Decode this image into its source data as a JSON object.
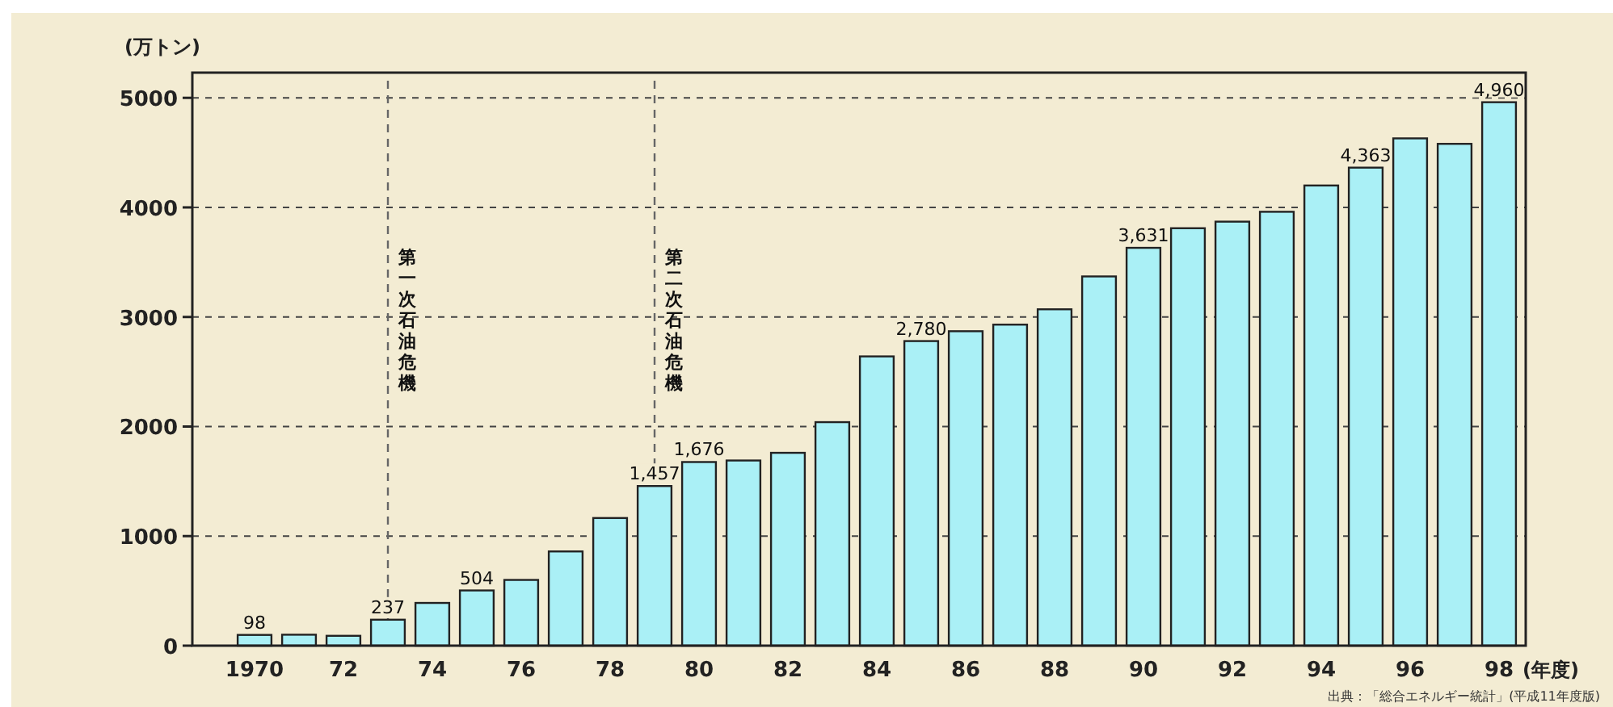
{
  "chart_data": {
    "type": "bar",
    "ylabel": "(万トン)",
    "xlabel": "(年度)",
    "x": [
      1970,
      1971,
      1972,
      1973,
      1974,
      1975,
      1976,
      1977,
      1978,
      1979,
      1980,
      1981,
      1982,
      1983,
      1984,
      1985,
      1986,
      1987,
      1988,
      1989,
      1990,
      1991,
      1992,
      1993,
      1994,
      1995,
      1996,
      1997,
      1998
    ],
    "values": [
      98,
      100,
      90,
      237,
      390,
      504,
      600,
      860,
      1165,
      1457,
      1676,
      1690,
      1760,
      2040,
      2640,
      2780,
      2870,
      2930,
      3070,
      3370,
      3631,
      3810,
      3870,
      3960,
      4200,
      4363,
      4630,
      4580,
      4960
    ],
    "value_labels": [
      "98",
      null,
      null,
      "237",
      null,
      "504",
      null,
      null,
      null,
      "1,457",
      "1,676",
      null,
      null,
      null,
      null,
      "2,780",
      null,
      null,
      null,
      null,
      "3,631",
      null,
      null,
      null,
      null,
      "4,363",
      null,
      null,
      "4,960"
    ],
    "color": "#aaf0f6",
    "xlim": [
      1968.6,
      1998.6
    ],
    "xticks": [
      {
        "value": 1970,
        "label": "1970"
      },
      {
        "value": 1972,
        "label": "72"
      },
      {
        "value": 1974,
        "label": "74"
      },
      {
        "value": 1976,
        "label": "76"
      },
      {
        "value": 1978,
        "label": "78"
      },
      {
        "value": 1980,
        "label": "80"
      },
      {
        "value": 1982,
        "label": "82"
      },
      {
        "value": 1984,
        "label": "84"
      },
      {
        "value": 1986,
        "label": "86"
      },
      {
        "value": 1988,
        "label": "88"
      },
      {
        "value": 1990,
        "label": "90"
      },
      {
        "value": 1992,
        "label": "92"
      },
      {
        "value": 1994,
        "label": "94"
      },
      {
        "value": 1996,
        "label": "96"
      },
      {
        "value": 1998,
        "label": "98"
      }
    ],
    "ylim": [
      0,
      5230
    ],
    "yticks": [
      0,
      1000,
      2000,
      3000,
      4000,
      5000
    ],
    "grid": "y",
    "ref_lines": [
      {
        "axis": "x",
        "value": 1973,
        "label": "第一次石油危機",
        "line_style": "dashed"
      },
      {
        "axis": "x",
        "value": 1979,
        "label": "第二次石油危機",
        "line_style": "dashed"
      }
    ],
    "annotations": [
      "出典：「総合エネルギー統計」(平成11年度版)"
    ]
  }
}
